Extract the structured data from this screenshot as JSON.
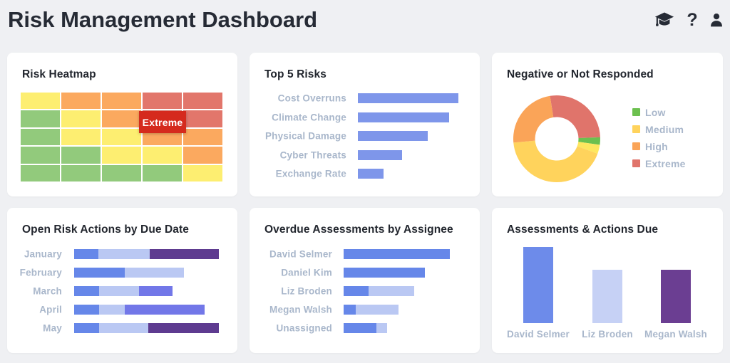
{
  "page": {
    "title": "Risk Management Dashboard"
  },
  "header": {
    "icons": [
      {
        "name": "graduation-cap",
        "glyph": "cap"
      },
      {
        "name": "help",
        "glyph": "?"
      },
      {
        "name": "user",
        "glyph": "person"
      }
    ]
  },
  "palette": {
    "risk_green": "#92ca7c",
    "risk_yellow": "#fdee71",
    "risk_orange": "#fba95f",
    "risk_red": "#e2766b",
    "tooltip_red": "#d52a1d",
    "bar_blue": "#7e96ea",
    "stack_blue": "#6687e9",
    "stack_light": "#bac8f3",
    "stack_periwinkle": "#7277e8",
    "stack_purple": "#5e3b90",
    "donut_green": "#6cc04f",
    "donut_yellow": "#ffd35c",
    "donut_yellow_light": "#fee75f",
    "donut_orange": "#faa458",
    "donut_red": "#e0746b",
    "label_gray": "#a9b7cb",
    "title_dark": "#22262e"
  },
  "chart_data": [
    {
      "id": "heatmap",
      "type": "heatmap",
      "title": "Risk Heatmap",
      "rows": 5,
      "cols": 5,
      "cell_colors": [
        [
          "yellow",
          "orange",
          "orange",
          "red",
          "red"
        ],
        [
          "green",
          "yellow",
          "orange",
          "red",
          "red"
        ],
        [
          "green",
          "yellow",
          "yellow",
          "orange",
          "orange"
        ],
        [
          "green",
          "green",
          "yellow",
          "yellow",
          "orange"
        ],
        [
          "green",
          "green",
          "green",
          "green",
          "yellow"
        ]
      ],
      "tooltip": {
        "label": "Extreme",
        "row": 2,
        "col": 4
      }
    },
    {
      "id": "top_risks",
      "type": "bar",
      "title": "Top 5 Risks",
      "orientation": "horizontal",
      "categories": [
        "Cost Overruns",
        "Climate Change",
        "Physical Damage",
        "Cyber Threats",
        "Exchange Rate"
      ],
      "values": [
        141,
        128,
        98,
        62,
        36
      ],
      "max_value": 141,
      "grid": false,
      "legend": false
    },
    {
      "id": "negative_not_responded",
      "type": "pie",
      "title": "Negative or Not Responded",
      "donut": true,
      "start_angle_deg": -9,
      "slices": [
        {
          "name": "Extreme",
          "angle_deg": 97,
          "color_key": "donut_red"
        },
        {
          "name": "Low",
          "angle_deg": 10,
          "color_key": "donut_green"
        },
        {
          "name": "Medium (light)",
          "angle_deg": 12,
          "color_key": "donut_yellow_light"
        },
        {
          "name": "Medium",
          "angle_deg": 155,
          "color_key": "donut_yellow"
        },
        {
          "name": "High",
          "angle_deg": 86,
          "color_key": "donut_orange"
        }
      ],
      "legend": [
        {
          "label": "Low",
          "color_key": "donut_green"
        },
        {
          "label": "Medium",
          "color_key": "donut_yellow"
        },
        {
          "label": "High",
          "color_key": "donut_orange"
        },
        {
          "label": "Extreme",
          "color_key": "donut_red"
        }
      ],
      "legend_position": "right"
    },
    {
      "id": "open_actions",
      "type": "bar",
      "title": "Open Risk Actions by Due Date",
      "orientation": "horizontal",
      "stacked": true,
      "categories": [
        "January",
        "February",
        "March",
        "April",
        "May"
      ],
      "series": [
        {
          "name": "series-1",
          "color_key": "stack_blue",
          "values": [
            34,
            71,
            35,
            35,
            35
          ]
        },
        {
          "name": "series-2",
          "color_key": "stack_light",
          "values": [
            72,
            83,
            56,
            36,
            69
          ]
        },
        {
          "name": "series-3",
          "color_key": "stack_periwinkle",
          "values": [
            0,
            0,
            47,
            112,
            0
          ]
        },
        {
          "name": "series-4",
          "color_key": "stack_purple",
          "values": [
            97,
            0,
            0,
            0,
            99
          ]
        }
      ],
      "grid": false,
      "legend": false
    },
    {
      "id": "overdue_assessments",
      "type": "bar",
      "title": "Overdue Assessments by Assignee",
      "orientation": "horizontal",
      "stacked": true,
      "categories": [
        "David Selmer",
        "Daniel Kim",
        "Liz Broden",
        "Megan Walsh",
        "Unassigned"
      ],
      "series": [
        {
          "name": "series-1",
          "color_key": "stack_blue",
          "values": [
            149,
            114,
            35,
            17,
            46
          ]
        },
        {
          "name": "series-2",
          "color_key": "stack_light",
          "values": [
            0,
            0,
            64,
            60,
            15
          ]
        }
      ],
      "grid": false,
      "legend": false
    },
    {
      "id": "assessments_actions_due",
      "type": "bar",
      "title": "Assessments & Actions Due",
      "orientation": "vertical",
      "categories": [
        "David Selmer",
        "Liz Broden",
        "Megan Walsh"
      ],
      "values": [
        107,
        75,
        75
      ],
      "bar_color_keys": [
        "bar_blue_vertical",
        "light_blue_vertical",
        "purple_vertical"
      ],
      "bar_colors": [
        "#6d8bea",
        "#c6d1f5",
        "#6b3e92"
      ],
      "grid": false,
      "legend": false
    }
  ]
}
